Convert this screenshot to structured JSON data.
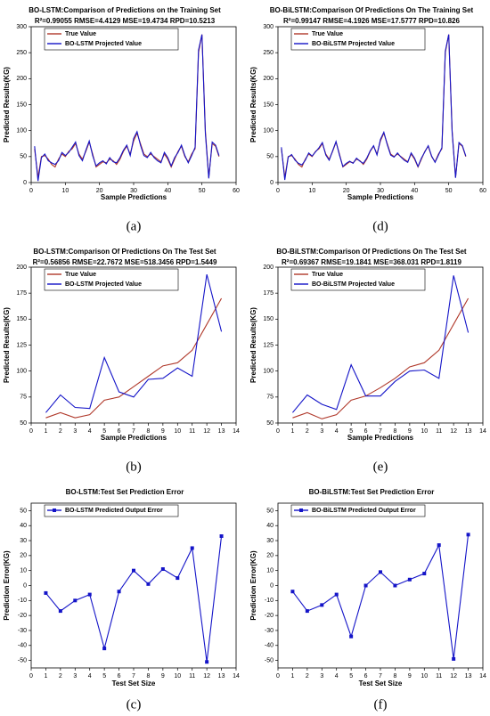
{
  "chart_data": [
    {
      "type": "line",
      "panel": "(a)",
      "title": "BO-LSTM:Comparison of Predictions on the Training Set",
      "subtitle": "R²=0.99055 RMSE=4.4129 MSE=19.4734 RPD=10.5213",
      "x_label": "Sample Predictions",
      "y_label": "Predicted Results(KG)",
      "x": [
        1,
        2,
        3,
        4,
        5,
        6,
        7,
        8,
        9,
        10,
        11,
        12,
        13,
        14,
        15,
        16,
        17,
        18,
        19,
        20,
        21,
        22,
        23,
        24,
        25,
        26,
        27,
        28,
        29,
        30,
        31,
        32,
        33,
        34,
        35,
        36,
        37,
        38,
        39,
        40,
        41,
        42,
        43,
        44,
        45,
        46,
        47,
        48,
        49,
        50,
        51,
        52,
        53,
        54,
        55
      ],
      "series": [
        {
          "name": "True Value",
          "color": "#b0392b",
          "values": [
            65,
            10,
            50,
            52,
            45,
            35,
            30,
            45,
            55,
            50,
            60,
            65,
            75,
            55,
            45,
            60,
            78,
            55,
            30,
            35,
            40,
            38,
            45,
            42,
            35,
            45,
            60,
            70,
            55,
            80,
            95,
            75,
            55,
            50,
            55,
            50,
            45,
            40,
            55,
            45,
            30,
            45,
            60,
            70,
            50,
            40,
            55,
            65,
            250,
            285,
            100,
            10,
            75,
            70,
            50
          ]
        },
        {
          "name": "BO-LSTM Projected Value",
          "color": "#1414c8",
          "values": [
            70,
            3,
            48,
            55,
            42,
            38,
            35,
            42,
            58,
            52,
            58,
            68,
            78,
            52,
            42,
            62,
            80,
            52,
            32,
            38,
            42,
            36,
            48,
            40,
            38,
            48,
            62,
            72,
            52,
            85,
            98,
            72,
            52,
            48,
            58,
            48,
            42,
            38,
            58,
            48,
            32,
            48,
            58,
            72,
            52,
            38,
            52,
            68,
            255,
            285,
            95,
            8,
            78,
            72,
            52
          ]
        }
      ],
      "xlim": [
        0,
        60
      ],
      "xticks": [
        0,
        10,
        20,
        30,
        40,
        50,
        60
      ],
      "ylim": [
        0,
        300
      ],
      "yticks": [
        0,
        50,
        100,
        150,
        200,
        250,
        300
      ]
    },
    {
      "type": "line",
      "panel": "(d)",
      "title": "BO-BiLSTM:Comparison Of Predictions On The Training Set",
      "subtitle": "R²=0.99147 RMSE=4.1926 MSE=17.5777 RPD=10.826",
      "x_label": "Sample Predictions",
      "y_label": "Predicted Results(KG)",
      "x": [
        1,
        2,
        3,
        4,
        5,
        6,
        7,
        8,
        9,
        10,
        11,
        12,
        13,
        14,
        15,
        16,
        17,
        18,
        19,
        20,
        21,
        22,
        23,
        24,
        25,
        26,
        27,
        28,
        29,
        30,
        31,
        32,
        33,
        34,
        35,
        36,
        37,
        38,
        39,
        40,
        41,
        42,
        43,
        44,
        45,
        46,
        47,
        48,
        49,
        50,
        51,
        52,
        53,
        54,
        55
      ],
      "series": [
        {
          "name": "True Value",
          "color": "#b0392b",
          "values": [
            65,
            10,
            50,
            52,
            45,
            35,
            30,
            45,
            55,
            50,
            60,
            65,
            75,
            55,
            45,
            60,
            78,
            55,
            30,
            35,
            40,
            38,
            45,
            42,
            35,
            45,
            60,
            70,
            55,
            80,
            95,
            75,
            55,
            50,
            55,
            50,
            45,
            40,
            55,
            45,
            30,
            45,
            60,
            70,
            50,
            40,
            55,
            65,
            250,
            285,
            100,
            10,
            75,
            70,
            50
          ]
        },
        {
          "name": "BO-BiLSTM Projected Value",
          "color": "#1414c8",
          "values": [
            68,
            5,
            49,
            54,
            43,
            37,
            34,
            43,
            57,
            51,
            59,
            67,
            77,
            53,
            43,
            61,
            79,
            53,
            31,
            37,
            41,
            37,
            47,
            41,
            37,
            47,
            61,
            71,
            53,
            83,
            97,
            73,
            53,
            49,
            57,
            49,
            43,
            39,
            57,
            47,
            31,
            47,
            59,
            71,
            51,
            39,
            53,
            67,
            253,
            285,
            97,
            9,
            77,
            71,
            51
          ]
        }
      ],
      "xlim": [
        0,
        60
      ],
      "xticks": [
        0,
        10,
        20,
        30,
        40,
        50,
        60
      ],
      "ylim": [
        0,
        300
      ],
      "yticks": [
        0,
        50,
        100,
        150,
        200,
        250,
        300
      ]
    },
    {
      "type": "line",
      "panel": "(b)",
      "title": "BO-LSTM:Comparison Of Predictions On The Test Set",
      "subtitle": "R²=0.56856 RMSE=22.7672 MSE=518.3456 RPD=1.5449",
      "x_label": "Sample Predictions",
      "y_label": "Predicted Results(KG)",
      "x": [
        1,
        2,
        3,
        4,
        5,
        6,
        7,
        8,
        9,
        10,
        11,
        12,
        13
      ],
      "series": [
        {
          "name": "True Value",
          "color": "#b0392b",
          "values": [
            55,
            60,
            55,
            58,
            72,
            75,
            85,
            95,
            105,
            108,
            120,
            145,
            170
          ]
        },
        {
          "name": "BO-LSTM Projected Value",
          "color": "#1414c8",
          "values": [
            60,
            77,
            65,
            64,
            113,
            80,
            75,
            92,
            93,
            103,
            95,
            193,
            138
          ]
        }
      ],
      "xlim": [
        0,
        14
      ],
      "xticks": [
        0,
        1,
        2,
        3,
        4,
        5,
        6,
        7,
        8,
        9,
        10,
        11,
        12,
        13,
        14
      ],
      "ylim": [
        50,
        200
      ],
      "yticks": [
        50,
        75,
        100,
        125,
        150,
        175,
        200
      ]
    },
    {
      "type": "line",
      "panel": "(e)",
      "title": "BO-BiLSTM:Comparison Of Predictions On The Test Set",
      "subtitle": "R²=0.69367 RMSE=19.1841 MSE=368.031 RPD=1.8119",
      "x_label": "Sample Predictions",
      "y_label": "Predicted Results(KG)",
      "x": [
        1,
        2,
        3,
        4,
        5,
        6,
        7,
        8,
        9,
        10,
        11,
        12,
        13
      ],
      "series": [
        {
          "name": "True Value",
          "color": "#b0392b",
          "values": [
            55,
            60,
            54,
            58,
            72,
            76,
            84,
            93,
            104,
            108,
            120,
            145,
            170
          ]
        },
        {
          "name": "BO-BiLSTM Projected Value",
          "color": "#1414c8",
          "values": [
            60,
            77,
            68,
            63,
            106,
            76,
            76,
            90,
            100,
            101,
            93,
            192,
            137
          ]
        }
      ],
      "xlim": [
        0,
        14
      ],
      "xticks": [
        0,
        1,
        2,
        3,
        4,
        5,
        6,
        7,
        8,
        9,
        10,
        11,
        12,
        13,
        14
      ],
      "ylim": [
        50,
        200
      ],
      "yticks": [
        50,
        75,
        100,
        125,
        150,
        175,
        200
      ]
    },
    {
      "type": "error",
      "panel": "(c)",
      "title": "BO-LSTM:Test Set Prediction Error",
      "x_label": "Test Set Size",
      "y_label": "Prediction Error(KG)",
      "x": [
        1,
        2,
        3,
        4,
        5,
        6,
        7,
        8,
        9,
        10,
        11,
        12,
        13
      ],
      "series": [
        {
          "name": "BO-LSTM Predicted Output Error",
          "color": "#1414c8",
          "values": [
            -5,
            -17,
            -10,
            -6,
            -42,
            -4,
            10,
            1,
            11,
            5,
            25,
            -51,
            33
          ]
        }
      ],
      "xlim": [
        0,
        14
      ],
      "xticks": [
        0,
        1,
        2,
        3,
        4,
        5,
        6,
        7,
        8,
        9,
        10,
        11,
        12,
        13,
        14
      ],
      "ylim": [
        -55,
        55
      ],
      "yticks": [
        -50,
        -40,
        -30,
        -20,
        -10,
        0,
        10,
        20,
        30,
        40,
        50
      ]
    },
    {
      "type": "error",
      "panel": "(f)",
      "title": "BO-BiLSTM:Test Set Prediction Error",
      "x_label": "Test Set Size",
      "y_label": "Prediction Error(KG)",
      "x": [
        1,
        2,
        3,
        4,
        5,
        6,
        7,
        8,
        9,
        10,
        11,
        12,
        13
      ],
      "series": [
        {
          "name": "BO-BiLSTM Predicted Output Error",
          "color": "#1414c8",
          "values": [
            -4,
            -17,
            -13,
            -6,
            -34,
            0,
            9,
            0,
            4,
            8,
            27,
            -49,
            34
          ]
        }
      ],
      "xlim": [
        0,
        14
      ],
      "xticks": [
        0,
        1,
        2,
        3,
        4,
        5,
        6,
        7,
        8,
        9,
        10,
        11,
        12,
        13,
        14
      ],
      "ylim": [
        -55,
        55
      ],
      "yticks": [
        -50,
        -40,
        -30,
        -20,
        -10,
        0,
        10,
        20,
        30,
        40,
        50
      ]
    }
  ]
}
